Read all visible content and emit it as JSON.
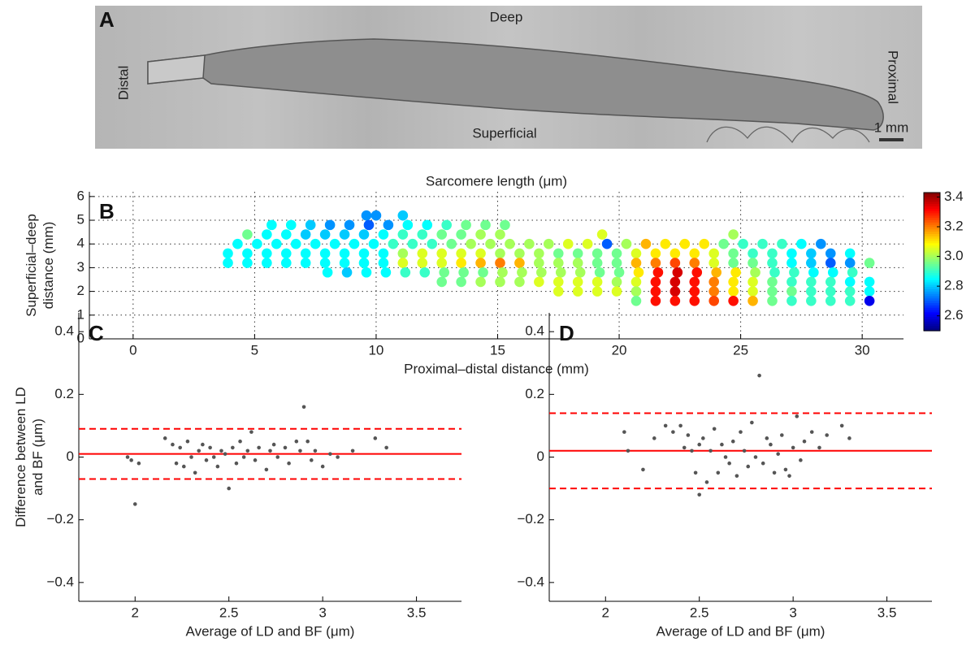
{
  "panel_a": {
    "letter": "A",
    "top": "Deep",
    "bottom": "Superficial",
    "left": "Distal",
    "right": "Proximal",
    "scale": "1 mm"
  },
  "chart_data": [
    {
      "type": "dotmap",
      "letter": "B",
      "title": "Sarcomere length (μm)",
      "xlabel": "Proximal–distal distance (mm)",
      "ylabel": [
        "Superficial–deep",
        "distance (mm)"
      ],
      "xlim": [
        -1.8,
        31.7
      ],
      "ylim": [
        0,
        6.2
      ],
      "xticks": [
        0,
        5,
        10,
        15,
        20,
        25,
        30
      ],
      "yticks": [
        0,
        1,
        2,
        3,
        4,
        5,
        6
      ],
      "grid": true,
      "clim": [
        2.5,
        3.43
      ],
      "cticks": [
        2.6,
        2.8,
        {
          "value": 3.0,
          "label": "3.0"
        },
        3.2,
        3.4
      ],
      "colormap": "jet",
      "rows": [
        {
          "y": 5.2,
          "x": [
            9.6,
            10.0,
            11.1
          ],
          "values": [
            2.75,
            2.75,
            2.8
          ]
        },
        {
          "y": 4.8,
          "x": [
            5.7,
            6.5,
            7.3,
            8.1,
            8.9,
            9.7,
            10.5,
            11.3,
            12.1,
            12.9,
            13.7,
            14.5,
            15.3
          ],
          "values": [
            2.85,
            2.85,
            2.8,
            2.75,
            2.75,
            2.7,
            2.75,
            2.85,
            2.85,
            2.9,
            2.95,
            2.95,
            2.95
          ]
        },
        {
          "y": 4.4,
          "x": [
            4.7,
            5.5,
            6.3,
            7.1,
            7.9,
            8.7,
            9.5,
            10.3,
            11.1,
            11.9,
            12.7,
            13.5,
            14.3,
            15.1,
            19.3,
            24.7
          ],
          "values": [
            2.95,
            2.85,
            2.85,
            2.8,
            2.8,
            2.8,
            2.8,
            2.85,
            2.9,
            2.9,
            2.95,
            2.95,
            3.0,
            3.0,
            3.05,
            3.0
          ]
        },
        {
          "y": 4.0,
          "x": [
            4.3,
            5.1,
            5.9,
            6.7,
            7.5,
            8.3,
            9.1,
            9.9,
            10.7,
            11.5,
            12.3,
            13.1,
            13.9,
            14.7,
            15.5,
            16.3,
            17.1,
            17.9,
            18.7,
            19.5,
            20.3,
            21.1,
            21.9,
            22.7,
            23.5,
            24.3,
            25.1,
            25.9,
            26.7,
            27.5,
            28.3
          ],
          "values": [
            2.85,
            2.85,
            2.85,
            2.85,
            2.85,
            2.85,
            2.85,
            2.85,
            2.9,
            2.9,
            2.9,
            2.95,
            3.0,
            3.0,
            3.0,
            3.0,
            3.0,
            3.05,
            3.05,
            2.7,
            3.0,
            3.15,
            3.1,
            3.1,
            3.1,
            2.95,
            2.9,
            2.9,
            2.9,
            2.85,
            2.75
          ]
        },
        {
          "y": 3.6,
          "x": [
            3.9,
            4.7,
            5.5,
            6.3,
            7.1,
            7.9,
            8.7,
            9.5,
            10.3,
            11.1,
            11.9,
            12.7,
            13.5,
            14.3,
            15.1,
            15.9,
            16.7,
            17.5,
            18.3,
            19.1,
            19.9,
            20.7,
            21.5,
            22.3,
            23.1,
            23.9,
            24.7,
            25.5,
            26.3,
            27.1,
            27.9,
            28.7,
            29.5
          ],
          "values": [
            2.85,
            2.85,
            2.85,
            2.85,
            2.85,
            2.85,
            2.85,
            2.85,
            2.85,
            3.0,
            3.05,
            3.05,
            3.05,
            3.05,
            3.0,
            3.0,
            3.0,
            2.95,
            2.95,
            2.95,
            2.95,
            3.05,
            3.1,
            3.1,
            3.1,
            3.05,
            2.95,
            2.9,
            2.9,
            2.85,
            2.8,
            2.75,
            2.85
          ]
        },
        {
          "y": 3.2,
          "x": [
            3.9,
            4.7,
            5.5,
            6.3,
            7.1,
            7.9,
            8.7,
            9.5,
            10.3,
            11.1,
            11.9,
            12.7,
            13.5,
            14.3,
            15.1,
            15.9,
            16.7,
            17.5,
            18.3,
            19.1,
            19.9,
            20.7,
            21.5,
            22.3,
            23.1,
            23.9,
            24.7,
            25.5,
            26.3,
            27.1,
            27.9,
            28.7,
            29.5,
            30.3
          ],
          "values": [
            2.85,
            2.85,
            2.85,
            2.85,
            2.85,
            2.85,
            2.85,
            2.85,
            2.85,
            3.05,
            3.05,
            3.05,
            3.1,
            3.15,
            3.2,
            3.15,
            3.0,
            3.0,
            3.0,
            2.95,
            2.95,
            3.15,
            3.2,
            3.25,
            3.2,
            3.05,
            2.95,
            2.95,
            2.9,
            2.85,
            2.8,
            2.7,
            2.75,
            2.95
          ]
        },
        {
          "y": 2.8,
          "x": [
            8.0,
            8.8,
            9.6,
            10.4,
            11.2,
            12.0,
            12.8,
            13.6,
            14.4,
            15.2,
            16.0,
            16.8,
            17.6,
            18.4,
            19.2,
            20.0,
            20.8,
            21.6,
            22.4,
            23.2,
            24.0,
            24.8,
            25.6,
            26.4,
            27.2,
            28.0,
            28.8,
            29.6
          ],
          "values": [
            2.85,
            2.8,
            2.85,
            2.85,
            2.9,
            2.9,
            2.95,
            2.95,
            2.95,
            3.0,
            3.0,
            3.0,
            3.0,
            3.0,
            2.95,
            2.95,
            3.1,
            3.3,
            3.35,
            3.3,
            3.15,
            3.1,
            3.0,
            2.9,
            2.9,
            2.85,
            2.85,
            2.9
          ]
        },
        {
          "y": 2.4,
          "x": [
            12.7,
            13.5,
            14.3,
            15.1,
            15.9,
            16.7,
            17.5,
            18.3,
            19.1,
            19.9,
            20.7,
            21.5,
            22.3,
            23.1,
            23.9,
            24.7,
            25.5,
            26.3,
            27.1,
            27.9,
            28.7,
            29.5,
            30.3
          ],
          "values": [
            2.95,
            2.95,
            3.0,
            3.0,
            3.0,
            3.05,
            3.05,
            3.05,
            3.05,
            3.0,
            3.05,
            3.3,
            3.35,
            3.3,
            3.2,
            3.1,
            3.05,
            2.95,
            2.9,
            2.9,
            2.9,
            2.85,
            2.85
          ]
        },
        {
          "y": 2.0,
          "x": [
            17.5,
            18.3,
            19.1,
            19.9,
            20.7,
            21.5,
            22.3,
            23.1,
            23.9,
            24.7,
            25.5,
            26.3,
            27.1,
            27.9,
            28.7,
            29.5,
            30.3
          ],
          "values": [
            3.05,
            3.05,
            3.05,
            3.05,
            3.0,
            3.3,
            3.35,
            3.3,
            3.2,
            3.1,
            3.05,
            2.95,
            2.95,
            2.9,
            2.9,
            2.9,
            2.85
          ]
        },
        {
          "y": 1.6,
          "x": [
            20.7,
            21.5,
            22.3,
            23.1,
            23.9,
            24.7,
            25.5,
            26.3,
            27.1,
            27.9,
            28.7,
            29.5,
            30.3
          ],
          "values": [
            2.95,
            3.3,
            3.3,
            3.3,
            3.25,
            3.3,
            3.15,
            2.95,
            2.9,
            2.9,
            2.9,
            2.9,
            2.6
          ]
        }
      ]
    },
    {
      "type": "scatter",
      "letter": "C",
      "xlabel": "Average of LD and BF (μm)",
      "ylabel": [
        "Difference between LD",
        "and BF (μm)"
      ],
      "xlim": [
        1.7,
        3.74
      ],
      "ylim": [
        -0.46,
        0.46
      ],
      "xticks": [
        2,
        2.5,
        3,
        3.5
      ],
      "yticks": [
        {
          "value": -0.4,
          "label": "−0.4"
        },
        {
          "value": -0.2,
          "label": "−0.2"
        },
        0,
        0.2,
        0.4
      ],
      "color": "#555555",
      "line_color": "#ff0000",
      "mean": 0.01,
      "limits": [
        0.09,
        -0.07
      ],
      "x": [
        1.96,
        1.98,
        2.0,
        2.02,
        2.16,
        2.2,
        2.22,
        2.24,
        2.26,
        2.28,
        2.3,
        2.32,
        2.34,
        2.36,
        2.38,
        2.4,
        2.42,
        2.44,
        2.46,
        2.48,
        2.5,
        2.52,
        2.54,
        2.56,
        2.58,
        2.6,
        2.62,
        2.64,
        2.66,
        2.7,
        2.72,
        2.74,
        2.76,
        2.8,
        2.82,
        2.86,
        2.88,
        2.9,
        2.92,
        2.94,
        2.96,
        3.0,
        3.04,
        3.08,
        3.16,
        3.28,
        3.34
      ],
      "values": [
        0.0,
        -0.01,
        -0.15,
        -0.02,
        0.06,
        0.04,
        -0.02,
        0.03,
        -0.03,
        0.05,
        0.0,
        -0.05,
        0.02,
        0.04,
        -0.01,
        0.03,
        0.0,
        -0.03,
        0.02,
        0.01,
        -0.1,
        0.03,
        -0.02,
        0.05,
        0.0,
        0.02,
        0.08,
        -0.01,
        0.03,
        -0.04,
        0.02,
        0.04,
        0.0,
        0.03,
        -0.02,
        0.05,
        0.02,
        0.16,
        0.05,
        -0.01,
        0.02,
        -0.03,
        0.01,
        0.0,
        0.02,
        0.06,
        0.03
      ]
    },
    {
      "type": "scatter",
      "letter": "D",
      "xlabel": "Average of LD and BF (μm)",
      "xlim": [
        1.7,
        3.74
      ],
      "ylim": [
        -0.46,
        0.46
      ],
      "xticks": [
        2,
        2.5,
        3,
        3.5
      ],
      "yticks": [
        {
          "value": -0.4,
          "label": "−0.4"
        },
        {
          "value": -0.2,
          "label": "−0.2"
        },
        0,
        0.2,
        0.4
      ],
      "color": "#555555",
      "line_color": "#ff0000",
      "mean": 0.02,
      "limits": [
        0.14,
        -0.1
      ],
      "x": [
        2.1,
        2.12,
        2.2,
        2.26,
        2.32,
        2.36,
        2.4,
        2.42,
        2.44,
        2.46,
        2.48,
        2.5,
        2.5,
        2.52,
        2.54,
        2.56,
        2.58,
        2.6,
        2.62,
        2.64,
        2.66,
        2.68,
        2.7,
        2.72,
        2.74,
        2.76,
        2.78,
        2.8,
        2.82,
        2.84,
        2.86,
        2.88,
        2.9,
        2.92,
        2.94,
        2.96,
        2.98,
        3.0,
        3.02,
        3.04,
        3.06,
        3.1,
        3.14,
        3.18,
        3.26,
        3.3
      ],
      "values": [
        0.08,
        0.02,
        -0.04,
        0.06,
        0.1,
        0.08,
        0.1,
        0.03,
        0.07,
        0.02,
        -0.05,
        -0.12,
        0.04,
        0.06,
        -0.08,
        0.02,
        0.09,
        -0.05,
        0.04,
        0.0,
        -0.02,
        0.05,
        -0.06,
        0.08,
        0.02,
        -0.03,
        0.11,
        0.0,
        0.26,
        -0.02,
        0.06,
        0.04,
        -0.05,
        0.01,
        0.07,
        -0.04,
        -0.06,
        0.03,
        0.13,
        -0.01,
        0.05,
        0.08,
        0.03,
        0.07,
        0.1,
        0.06
      ]
    }
  ]
}
